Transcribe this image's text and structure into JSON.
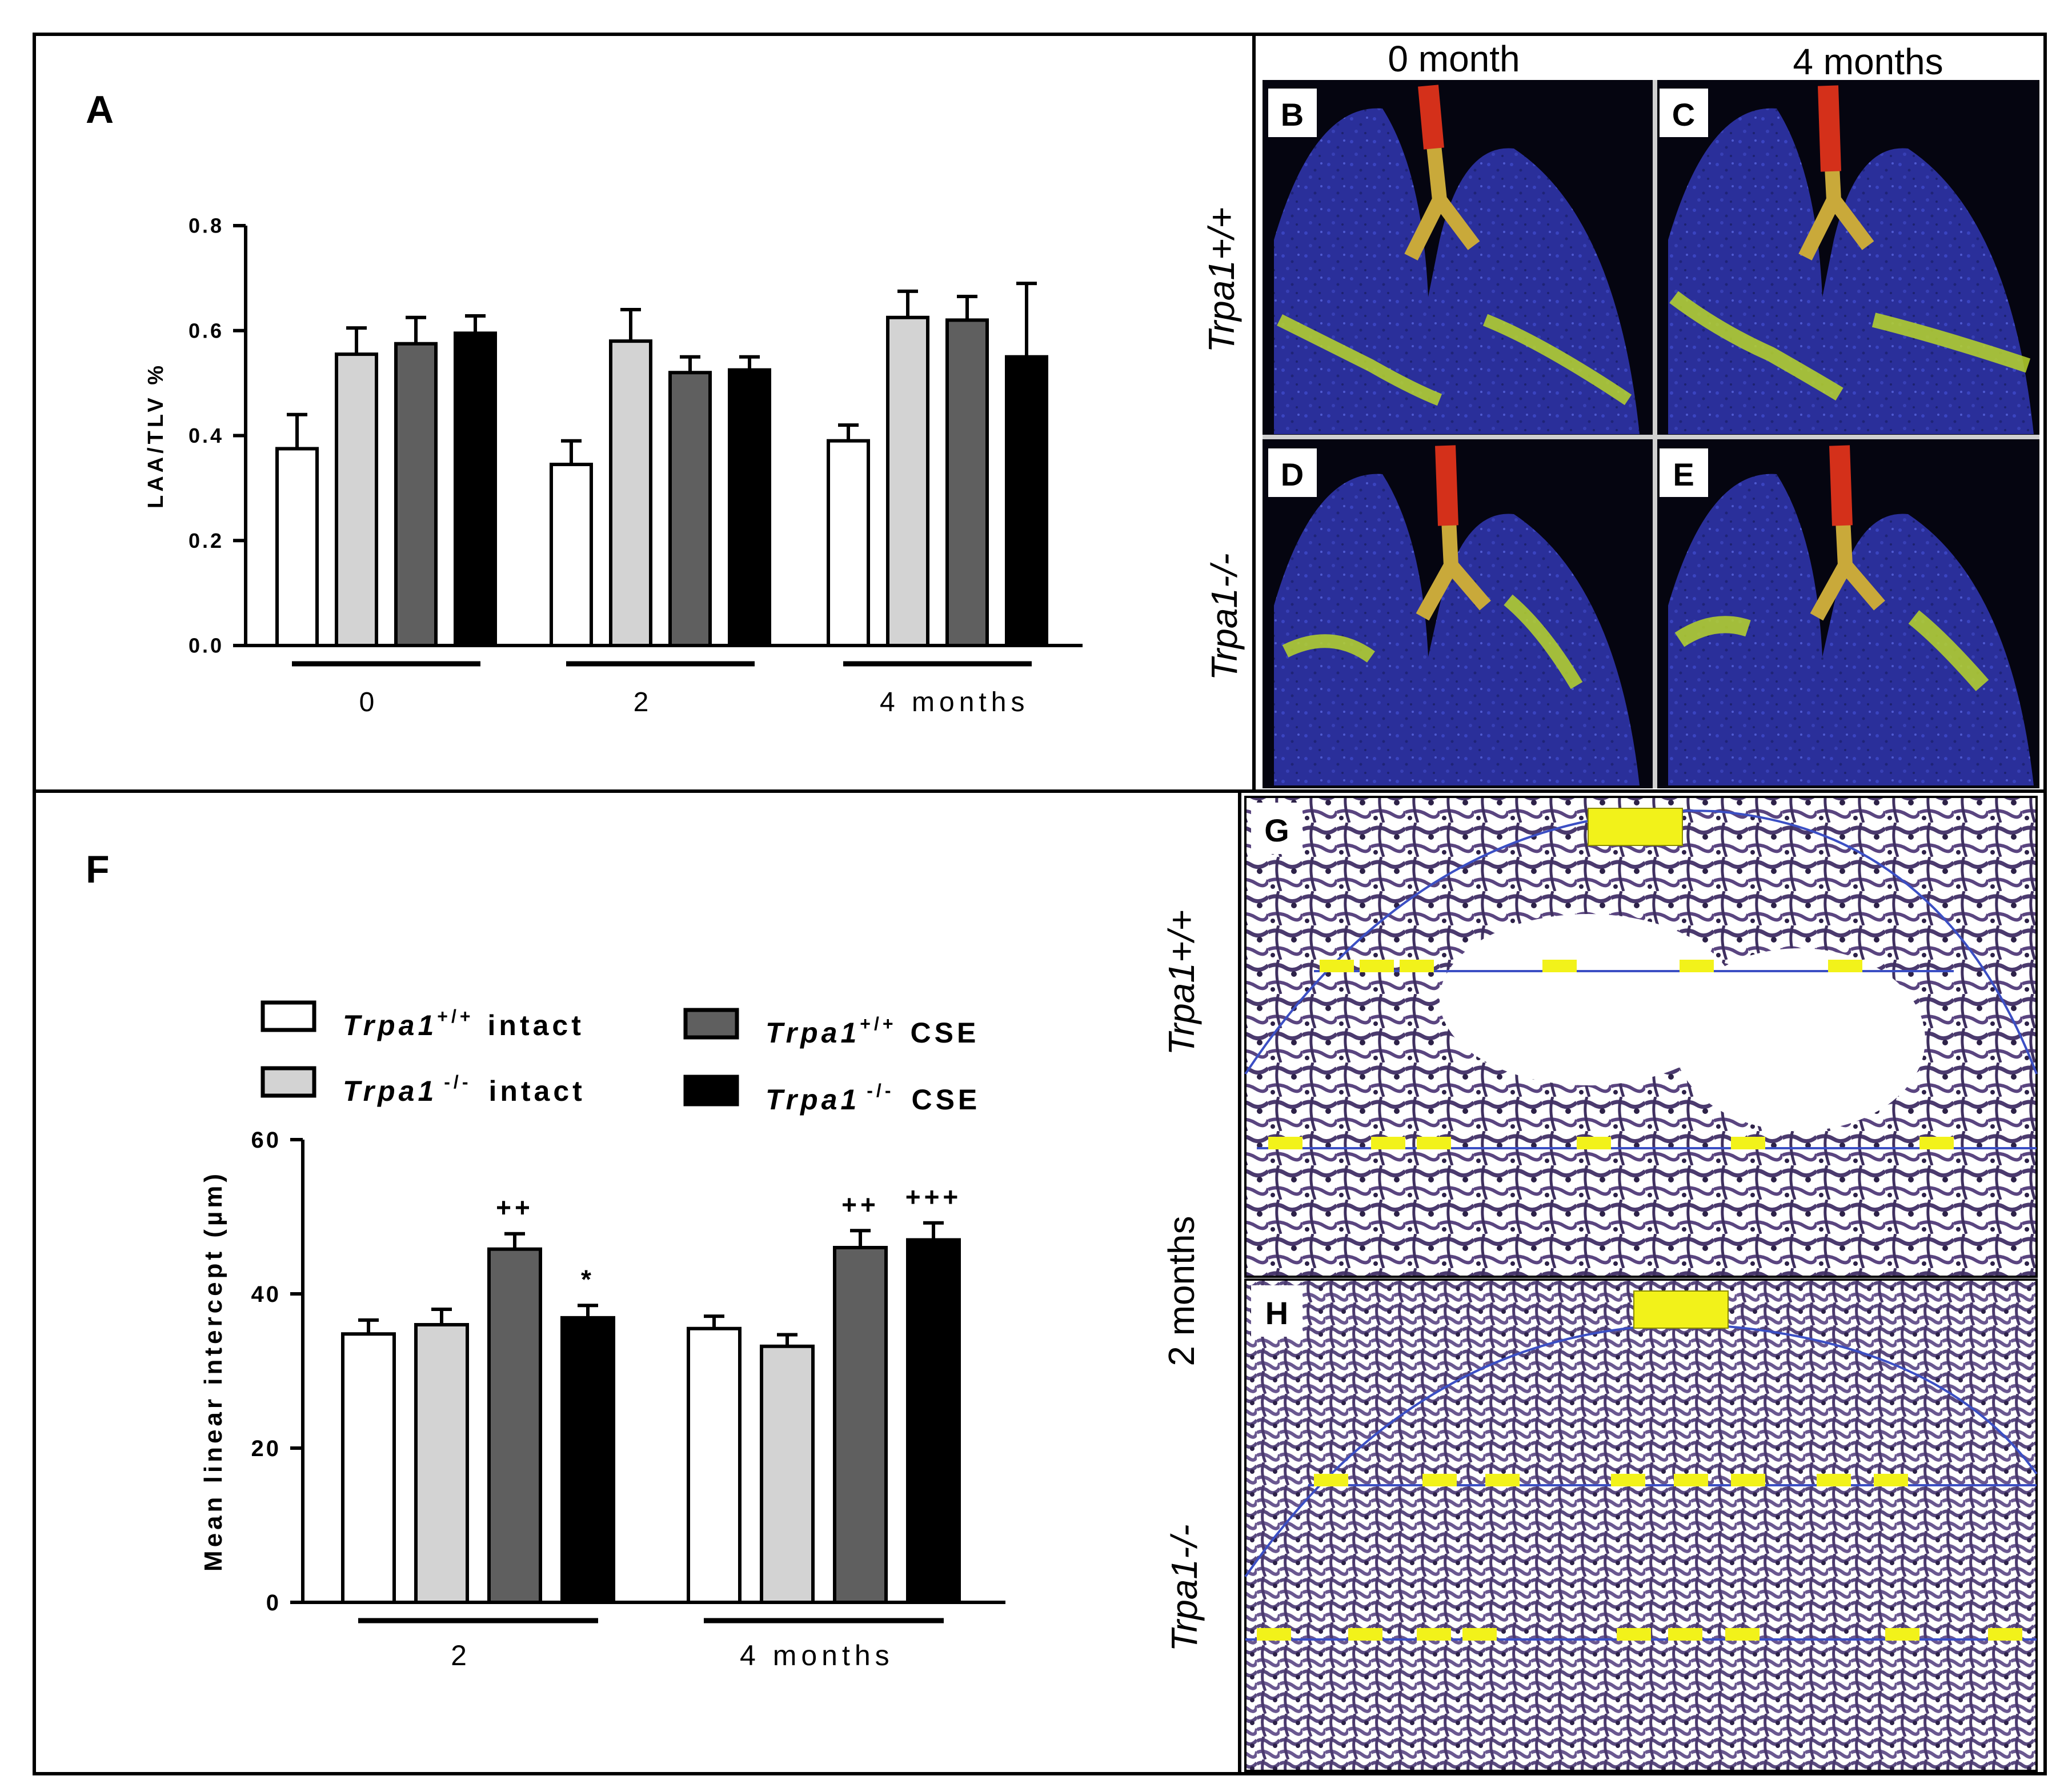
{
  "panel_labels": {
    "A": "A",
    "B": "B",
    "C": "C",
    "D": "D",
    "E": "E",
    "F": "F",
    "G": "G",
    "H": "H"
  },
  "column_headers": [
    "0 month",
    "4 months"
  ],
  "row_labels": {
    "ct_wt": "Trpa1+/+",
    "ct_ko": "Trpa1-/-",
    "histo_wt": "Trpa1+/+",
    "histo_mid": "2 months",
    "histo_ko": "Trpa1-/-"
  },
  "legend": [
    {
      "base": "Trpa1",
      "sup": "+/+",
      "suffix": "intact",
      "color": "#ffffff"
    },
    {
      "base": "Trpa1",
      "sup": "-/-",
      "suffix": "intact",
      "color": "#d3d3d3"
    },
    {
      "base": "Trpa1",
      "sup": "+/+",
      "suffix": "CSE",
      "color": "#5f5f5f"
    },
    {
      "base": "Trpa1",
      "sup": "-/-",
      "suffix": "CSE",
      "color": "#000000"
    }
  ],
  "colors": {
    "wt_intact": "#ffffff",
    "ko_intact": "#d3d3d3",
    "wt_cse": "#5f5f5f",
    "ko_cse": "#000000",
    "ct_background": "#050510",
    "lung_blue": "#2a2f9a",
    "emphysema_yellow": "#b8d62a",
    "airway_red": "#d4301a",
    "histo_tissue": "#4b3a6e",
    "annotation_yellow": "#f2f21a",
    "measure_line": "#3b4fc4"
  },
  "chart_data": [
    {
      "id": "A",
      "type": "bar",
      "ylabel": "LAA/TLV %",
      "ylim": [
        0,
        0.8
      ],
      "yticks": [
        "0.0",
        "0.2",
        "0.4",
        "0.6",
        "0.8"
      ],
      "categories": [
        "0",
        "2",
        "4 months"
      ],
      "series": [
        {
          "values": [
            0.375,
            0.345,
            0.39
          ],
          "errors": [
            0.065,
            0.045,
            0.03
          ]
        },
        {
          "values": [
            0.555,
            0.58,
            0.625
          ],
          "errors": [
            0.05,
            0.06,
            0.05
          ]
        },
        {
          "values": [
            0.575,
            0.52,
            0.62
          ],
          "errors": [
            0.05,
            0.03,
            0.045
          ]
        },
        {
          "values": [
            0.595,
            0.525,
            0.55
          ],
          "errors": [
            0.033,
            0.025,
            0.14
          ]
        }
      ],
      "annotations": []
    },
    {
      "id": "F",
      "type": "bar",
      "ylabel": "Mean linear intercept (µm)",
      "ylim": [
        0,
        60
      ],
      "yticks": [
        "0",
        "20",
        "40",
        "60"
      ],
      "categories": [
        "2",
        "4 months"
      ],
      "series": [
        {
          "values": [
            34.8,
            35.5
          ],
          "errors": [
            1.8,
            1.6
          ]
        },
        {
          "values": [
            36.0,
            33.2
          ],
          "errors": [
            2.0,
            1.5
          ]
        },
        {
          "values": [
            45.8,
            46.0
          ],
          "errors": [
            2.0,
            2.2
          ]
        },
        {
          "values": [
            36.9,
            47.0
          ],
          "errors": [
            1.6,
            2.2
          ]
        }
      ],
      "annotations": [
        {
          "category": 0,
          "series": 2,
          "text": "++"
        },
        {
          "category": 0,
          "series": 3,
          "text": "*"
        },
        {
          "category": 1,
          "series": 2,
          "text": "++"
        },
        {
          "category": 1,
          "series": 3,
          "text": "+++"
        }
      ]
    }
  ]
}
